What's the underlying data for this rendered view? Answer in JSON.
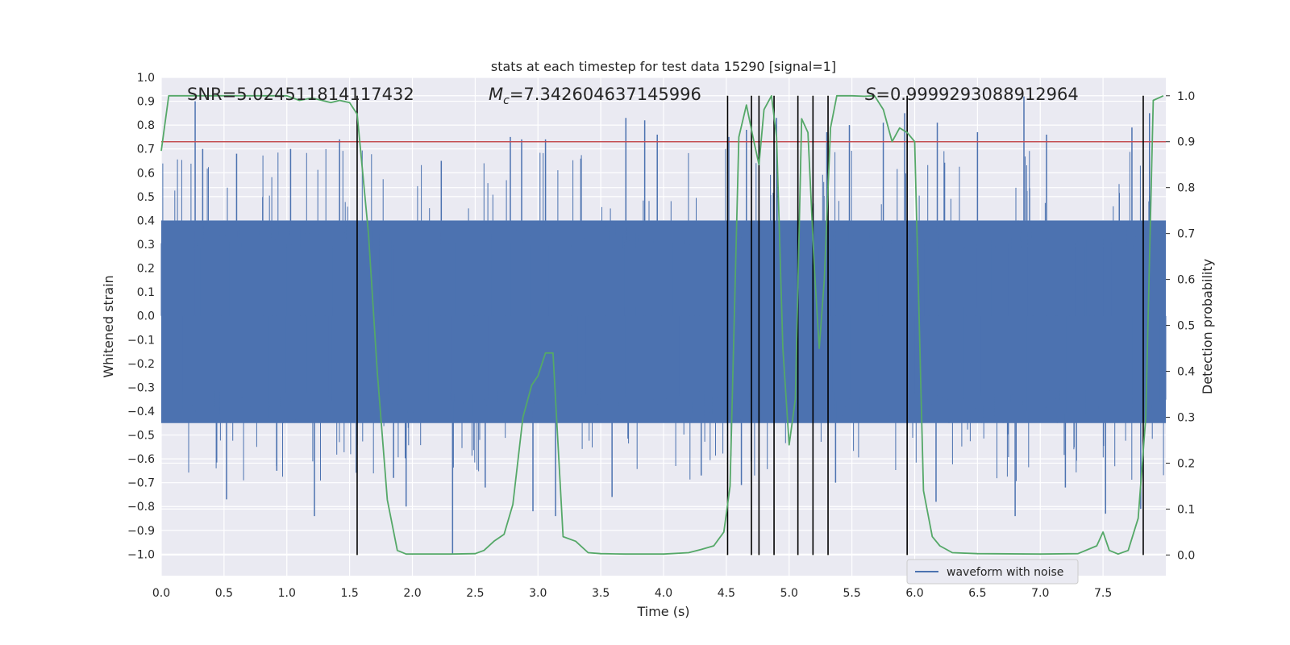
{
  "chart_data": {
    "type": "line",
    "title": "stats at each timestep for test data 15290 [signal=1]",
    "xlabel": "Time (s)",
    "ylabel": "Whitened strain",
    "y2label": "Detection probability",
    "xlim": [
      0.0,
      8.0
    ],
    "ylim": [
      -1.09,
      1.0
    ],
    "y2lim": [
      -0.045,
      1.04
    ],
    "xticks": [
      "0.0",
      "0.5",
      "1.0",
      "1.5",
      "2.0",
      "2.5",
      "3.0",
      "3.5",
      "4.0",
      "4.5",
      "5.0",
      "5.5",
      "6.0",
      "6.5",
      "7.0",
      "7.5"
    ],
    "yticks": [
      "1.0",
      "0.9",
      "0.8",
      "0.7",
      "0.6",
      "0.5",
      "0.4",
      "0.3",
      "0.2",
      "0.1",
      "0.0",
      "−0.1",
      "−0.2",
      "−0.3",
      "−0.4",
      "−0.5",
      "−0.6",
      "−0.7",
      "−0.8",
      "−0.9",
      "−1.0"
    ],
    "y2ticks": [
      "0.0",
      "0.1",
      "0.2",
      "0.3",
      "0.4",
      "0.5",
      "0.6",
      "0.7",
      "0.8",
      "0.9",
      "1.0"
    ],
    "grid": true,
    "legend_position": "lower-center-right",
    "annotations": {
      "snr": "SNR=5.024511814117432",
      "mc_symbol": "M",
      "mc_subscript": "c",
      "mc_value": "=7.342604637145996",
      "s_symbol": "S",
      "s_value": "=0.9999293088912964"
    },
    "threshold": {
      "y2": 0.9,
      "color": "#c44e52"
    },
    "event_lines_x": [
      1.56,
      4.51,
      4.7,
      4.76,
      4.88,
      5.07,
      5.19,
      5.31,
      5.94,
      7.82
    ],
    "event_lines_y2": [
      0.0,
      1.0
    ],
    "series": [
      {
        "name": "waveform with noise",
        "kind": "strain",
        "color": "#4c72b0",
        "typical_range": [
          -0.45,
          0.4
        ],
        "peaks": [
          {
            "x": 0.27,
            "y": 0.9
          },
          {
            "x": 0.33,
            "y": 0.7
          },
          {
            "x": 0.6,
            "y": 0.68
          },
          {
            "x": 1.03,
            "y": 0.7
          },
          {
            "x": 1.42,
            "y": 0.74
          },
          {
            "x": 2.23,
            "y": 0.65
          },
          {
            "x": 2.78,
            "y": 0.75
          },
          {
            "x": 2.87,
            "y": 0.74
          },
          {
            "x": 3.06,
            "y": 0.74
          },
          {
            "x": 3.7,
            "y": 0.83
          },
          {
            "x": 3.85,
            "y": 0.82
          },
          {
            "x": 3.95,
            "y": 0.76
          },
          {
            "x": 4.52,
            "y": 0.75
          },
          {
            "x": 4.66,
            "y": 0.78
          },
          {
            "x": 4.9,
            "y": 0.83
          },
          {
            "x": 5.3,
            "y": 0.77
          },
          {
            "x": 5.48,
            "y": 0.8
          },
          {
            "x": 5.75,
            "y": 0.81
          },
          {
            "x": 5.92,
            "y": 0.85
          },
          {
            "x": 6.18,
            "y": 0.81
          },
          {
            "x": 6.5,
            "y": 0.77
          },
          {
            "x": 6.87,
            "y": 0.92
          },
          {
            "x": 7.05,
            "y": 0.76
          },
          {
            "x": 7.73,
            "y": 0.79
          },
          {
            "x": 7.87,
            "y": 0.85
          }
        ],
        "troughs": [
          {
            "x": 0.52,
            "y": -0.77
          },
          {
            "x": 0.92,
            "y": -0.65
          },
          {
            "x": 1.22,
            "y": -0.84
          },
          {
            "x": 1.85,
            "y": -0.68
          },
          {
            "x": 1.95,
            "y": -0.8
          },
          {
            "x": 2.32,
            "y": -1.0
          },
          {
            "x": 2.58,
            "y": -0.72
          },
          {
            "x": 2.96,
            "y": -0.82
          },
          {
            "x": 3.14,
            "y": -0.84
          },
          {
            "x": 3.59,
            "y": -0.76
          },
          {
            "x": 4.3,
            "y": -0.67
          },
          {
            "x": 4.62,
            "y": -0.71
          },
          {
            "x": 5.37,
            "y": -0.7
          },
          {
            "x": 6.17,
            "y": -0.78
          },
          {
            "x": 6.8,
            "y": -0.84
          },
          {
            "x": 7.2,
            "y": -0.72
          },
          {
            "x": 7.52,
            "y": -0.83
          },
          {
            "x": 7.8,
            "y": -0.81
          }
        ]
      },
      {
        "name": "",
        "kind": "detection_probability",
        "axis": "y2",
        "color": "#55a868",
        "x": [
          0.0,
          0.06,
          0.12,
          0.2,
          0.4,
          0.6,
          0.8,
          1.0,
          1.1,
          1.2,
          1.28,
          1.35,
          1.42,
          1.5,
          1.56,
          1.65,
          1.72,
          1.8,
          1.88,
          1.95,
          2.1,
          2.3,
          2.5,
          2.57,
          2.65,
          2.73,
          2.8,
          2.88,
          2.95,
          3.0,
          3.06,
          3.12,
          3.2,
          3.3,
          3.4,
          3.5,
          3.7,
          4.0,
          4.2,
          4.3,
          4.4,
          4.48,
          4.53,
          4.6,
          4.66,
          4.72,
          4.76,
          4.8,
          4.86,
          4.9,
          4.95,
          5.0,
          5.05,
          5.1,
          5.15,
          5.2,
          5.24,
          5.28,
          5.33,
          5.38,
          5.45,
          5.5,
          5.6,
          5.68,
          5.75,
          5.82,
          5.88,
          5.94,
          6.0,
          6.07,
          6.14,
          6.2,
          6.3,
          6.5,
          7.0,
          7.3,
          7.45,
          7.5,
          7.55,
          7.62,
          7.7,
          7.78,
          7.84,
          7.9,
          7.98
        ],
        "y": [
          0.88,
          1.0,
          1.0,
          1.0,
          1.0,
          1.0,
          1.0,
          1.0,
          0.99,
          0.995,
          0.99,
          0.985,
          0.99,
          0.985,
          0.96,
          0.7,
          0.4,
          0.12,
          0.01,
          0.002,
          0.002,
          0.002,
          0.003,
          0.01,
          0.03,
          0.045,
          0.11,
          0.3,
          0.37,
          0.39,
          0.44,
          0.44,
          0.04,
          0.03,
          0.005,
          0.003,
          0.002,
          0.002,
          0.005,
          0.012,
          0.02,
          0.05,
          0.15,
          0.91,
          0.98,
          0.9,
          0.85,
          0.97,
          1.0,
          0.91,
          0.45,
          0.24,
          0.34,
          0.95,
          0.92,
          0.63,
          0.45,
          0.6,
          0.93,
          1.0,
          1.0,
          1.0,
          0.999,
          1.0,
          0.97,
          0.9,
          0.93,
          0.92,
          0.9,
          0.14,
          0.04,
          0.02,
          0.005,
          0.003,
          0.002,
          0.003,
          0.02,
          0.05,
          0.01,
          0.002,
          0.01,
          0.08,
          0.3,
          0.99,
          1.0
        ]
      }
    ]
  }
}
